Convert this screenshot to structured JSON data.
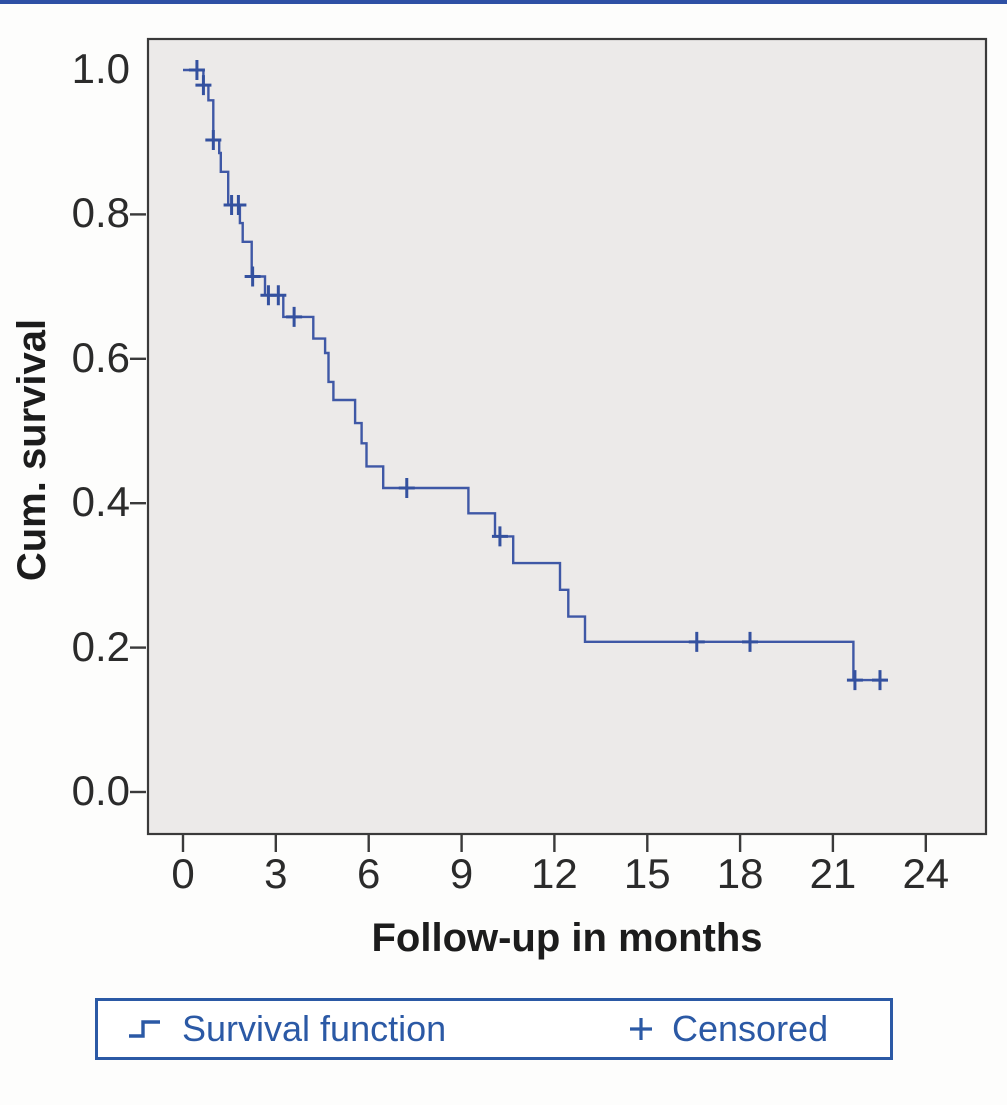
{
  "figure": {
    "description": "Kaplan-Meier cumulative survival curve with censored observations"
  },
  "colors": {
    "top_rule": "#2E50A5",
    "curve": "#3F58A6",
    "censor_mark": "#34519F",
    "legend_border": "#2B59A5",
    "legend_text": "#2B59A5",
    "axis_text": "#2B2B2B",
    "plot_background": "#ECEAE9",
    "frame_border": "#3A3A3A"
  },
  "legend": {
    "survival_label": "Survival function",
    "censored_label": "Censored"
  },
  "chart_data": {
    "type": "line",
    "subtype": "kaplan-meier-step",
    "title": "",
    "xlabel": "Follow-up in months",
    "ylabel": "Cum. survival",
    "x_ticks": [
      0,
      3,
      6,
      9,
      12,
      15,
      18,
      21,
      24
    ],
    "y_ticks": [
      1.0,
      0.8,
      0.6,
      0.4,
      0.2,
      0.0
    ],
    "y_ticks_with_marks": [
      0.8,
      0.6,
      0.4,
      0.2,
      0.0
    ],
    "xlim": [
      -1.2,
      26.0
    ],
    "ylim": [
      -0.06,
      1.04
    ],
    "grid": false,
    "legend_position": "bottom",
    "survival_steps": [
      [
        0.0,
        1.0
      ],
      [
        0.66,
        0.979
      ],
      [
        0.82,
        0.958
      ],
      [
        0.98,
        0.903
      ],
      [
        1.17,
        0.885
      ],
      [
        1.22,
        0.859
      ],
      [
        1.46,
        0.813
      ],
      [
        1.84,
        0.788
      ],
      [
        1.93,
        0.762
      ],
      [
        2.22,
        0.714
      ],
      [
        2.65,
        0.688
      ],
      [
        3.24,
        0.658
      ],
      [
        4.21,
        0.628
      ],
      [
        4.59,
        0.608
      ],
      [
        4.7,
        0.568
      ],
      [
        4.86,
        0.543
      ],
      [
        5.56,
        0.511
      ],
      [
        5.77,
        0.483
      ],
      [
        5.93,
        0.451
      ],
      [
        6.47,
        0.421
      ],
      [
        9.22,
        0.386
      ],
      [
        10.08,
        0.354
      ],
      [
        10.67,
        0.317
      ],
      [
        12.18,
        0.28
      ],
      [
        12.45,
        0.243
      ],
      [
        12.99,
        0.208
      ],
      [
        21.66,
        0.155
      ]
    ],
    "curve_end_time": 22.74,
    "censored_points": [
      [
        0.45,
        1.0
      ],
      [
        0.66,
        0.979
      ],
      [
        0.98,
        0.903
      ],
      [
        1.57,
        0.813
      ],
      [
        1.79,
        0.813
      ],
      [
        2.25,
        0.714
      ],
      [
        2.76,
        0.688
      ],
      [
        3.08,
        0.688
      ],
      [
        3.59,
        0.658
      ],
      [
        7.23,
        0.421
      ],
      [
        10.24,
        0.354
      ],
      [
        16.6,
        0.208
      ],
      [
        18.32,
        0.208
      ],
      [
        21.71,
        0.155
      ],
      [
        22.52,
        0.155
      ]
    ]
  }
}
